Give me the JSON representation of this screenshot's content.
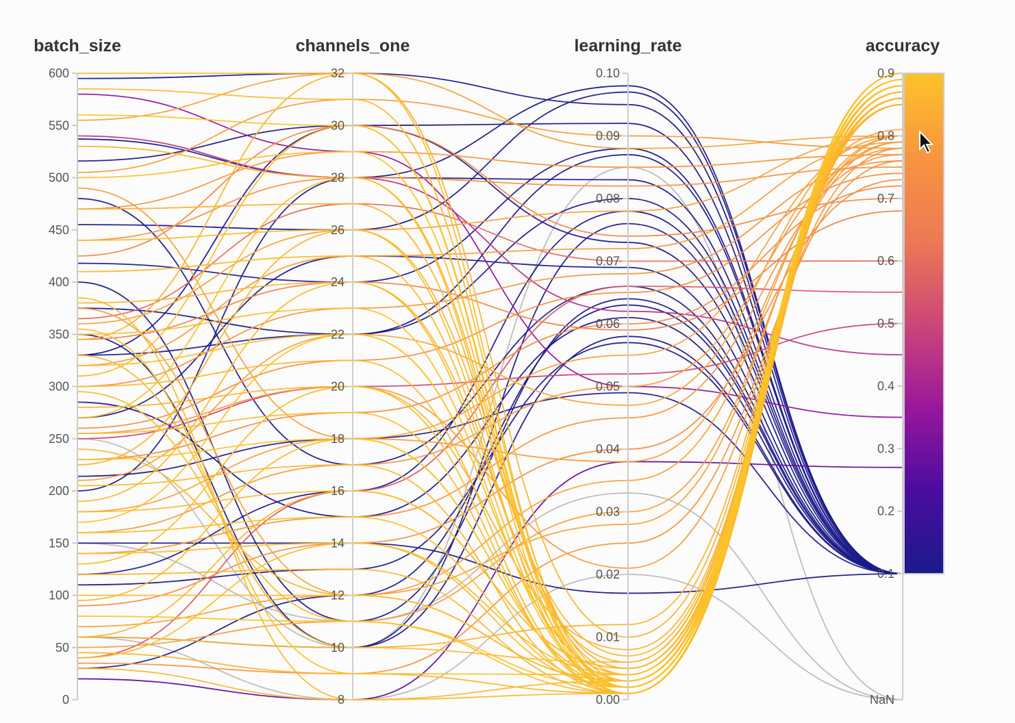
{
  "chart_data": {
    "type": "parallel-coordinates",
    "dimensions": [
      {
        "name": "batch_size",
        "range": [
          0,
          600
        ],
        "ticks": [
          "0",
          "50",
          "100",
          "150",
          "200",
          "250",
          "300",
          "350",
          "400",
          "450",
          "500",
          "550",
          "600"
        ],
        "tick_values": [
          0,
          50,
          100,
          150,
          200,
          250,
          300,
          350,
          400,
          450,
          500,
          550,
          600
        ]
      },
      {
        "name": "channels_one",
        "range": [
          8,
          32
        ],
        "ticks": [
          "8",
          "10",
          "12",
          "14",
          "16",
          "18",
          "20",
          "22",
          "24",
          "26",
          "28",
          "30",
          "32"
        ],
        "tick_values": [
          8,
          10,
          12,
          14,
          16,
          18,
          20,
          22,
          24,
          26,
          28,
          30,
          32
        ]
      },
      {
        "name": "learning_rate",
        "range": [
          0,
          0.1
        ],
        "ticks": [
          "0.00",
          "0.01",
          "0.02",
          "0.03",
          "0.04",
          "0.05",
          "0.06",
          "0.07",
          "0.08",
          "0.09",
          "0.10"
        ],
        "tick_values": [
          0,
          0.01,
          0.02,
          0.03,
          0.04,
          0.05,
          0.06,
          0.07,
          0.08,
          0.09,
          0.1
        ]
      },
      {
        "name": "accuracy",
        "range": [
          0.1,
          0.9
        ],
        "ticks": [
          "NaN",
          "0.1",
          "0.2",
          "0.3",
          "0.4",
          "0.5",
          "0.6",
          "0.7",
          "0.8",
          "0.9"
        ],
        "tick_values": [
          null,
          0.1,
          0.2,
          0.3,
          0.4,
          0.5,
          0.6,
          0.7,
          0.8,
          0.9
        ]
      }
    ],
    "color_by": "accuracy",
    "colorscale": [
      "#1b1a8a",
      "#4a0ca0",
      "#9a179b",
      "#cc4778",
      "#ed7953",
      "#f89540",
      "#fdc328"
    ],
    "nan_color": "#bbbbbb",
    "lines": [
      [
        595,
        32,
        0.095,
        0.1
      ],
      [
        537,
        28,
        0.098,
        0.1
      ],
      [
        455,
        26,
        0.097,
        0.1
      ],
      [
        418,
        24,
        0.088,
        0.1
      ],
      [
        375,
        22,
        0.08,
        0.1
      ],
      [
        330,
        22,
        0.087,
        0.1
      ],
      [
        516,
        30,
        0.073,
        0.1
      ],
      [
        480,
        17,
        0.066,
        0.1
      ],
      [
        400,
        11,
        0.064,
        0.1
      ],
      [
        350,
        10,
        0.058,
        0.1
      ],
      [
        285,
        15,
        0.061,
        0.1
      ],
      [
        214,
        18,
        0.049,
        0.1
      ],
      [
        120,
        16,
        0.078,
        0.1
      ],
      [
        60,
        10,
        0.076,
        0.1
      ],
      [
        30,
        12,
        0.063,
        0.1
      ],
      [
        150,
        14,
        0.017,
        0.1
      ],
      [
        200,
        28,
        0.083,
        0.1
      ],
      [
        330,
        30,
        0.092,
        0.1
      ],
      [
        110,
        13,
        0.057,
        0.1
      ],
      [
        270,
        25,
        0.069,
        0.1
      ],
      [
        20,
        8,
        0.038,
        0.27
      ],
      [
        580,
        29,
        0.05,
        0.35
      ],
      [
        540,
        28,
        0.062,
        0.45
      ],
      [
        250,
        20,
        0.052,
        0.5
      ],
      [
        40,
        16,
        0.066,
        0.55
      ],
      [
        365,
        27,
        0.07,
        0.6
      ],
      [
        505,
        31,
        0.09,
        0.78
      ],
      [
        470,
        29,
        0.085,
        0.77
      ],
      [
        440,
        28,
        0.082,
        0.75
      ],
      [
        360,
        26,
        0.078,
        0.8
      ],
      [
        320,
        25,
        0.072,
        0.79
      ],
      [
        300,
        23,
        0.068,
        0.76
      ],
      [
        260,
        21,
        0.065,
        0.74
      ],
      [
        230,
        19,
        0.06,
        0.72
      ],
      [
        180,
        18,
        0.055,
        0.8
      ],
      [
        160,
        17,
        0.05,
        0.78
      ],
      [
        140,
        15,
        0.045,
        0.77
      ],
      [
        90,
        14,
        0.04,
        0.73
      ],
      [
        70,
        12,
        0.035,
        0.8
      ],
      [
        50,
        11,
        0.03,
        0.79
      ],
      [
        35,
        9,
        0.025,
        0.76
      ],
      [
        255,
        20,
        0.021,
        0.78
      ],
      [
        555,
        32,
        0.088,
        0.8
      ],
      [
        425,
        30,
        0.074,
        0.7
      ],
      [
        345,
        24,
        0.059,
        0.68
      ],
      [
        210,
        22,
        0.047,
        0.81
      ],
      [
        375,
        12,
        0.028,
        0.8
      ],
      [
        490,
        18,
        0.038,
        0.79
      ],
      [
        600,
        32,
        0.002,
        0.88
      ],
      [
        585,
        31,
        0.003,
        0.87
      ],
      [
        560,
        30,
        0.001,
        0.9
      ],
      [
        530,
        28,
        0.004,
        0.86
      ],
      [
        500,
        29,
        0.002,
        0.89
      ],
      [
        470,
        27,
        0.005,
        0.85
      ],
      [
        440,
        26,
        0.001,
        0.88
      ],
      [
        410,
        25,
        0.003,
        0.87
      ],
      [
        380,
        24,
        0.006,
        0.86
      ],
      [
        350,
        23,
        0.002,
        0.89
      ],
      [
        320,
        22,
        0.004,
        0.88
      ],
      [
        300,
        21,
        0.001,
        0.87
      ],
      [
        280,
        20,
        0.008,
        0.85
      ],
      [
        255,
        19,
        0.002,
        0.88
      ],
      [
        230,
        18,
        0.003,
        0.9
      ],
      [
        205,
        17,
        0.001,
        0.86
      ],
      [
        180,
        16,
        0.005,
        0.87
      ],
      [
        160,
        15,
        0.002,
        0.89
      ],
      [
        140,
        14,
        0.004,
        0.88
      ],
      [
        120,
        13,
        0.001,
        0.86
      ],
      [
        100,
        12,
        0.003,
        0.87
      ],
      [
        80,
        11,
        0.002,
        0.9
      ],
      [
        60,
        10,
        0.006,
        0.88
      ],
      [
        45,
        9,
        0.001,
        0.86
      ],
      [
        30,
        8,
        0.003,
        0.87
      ],
      [
        345,
        32,
        0.01,
        0.85
      ],
      [
        310,
        30,
        0.002,
        0.88
      ],
      [
        270,
        28,
        0.001,
        0.89
      ],
      [
        225,
        26,
        0.007,
        0.86
      ],
      [
        190,
        24,
        0.002,
        0.87
      ],
      [
        170,
        22,
        0.004,
        0.9
      ],
      [
        130,
        20,
        0.001,
        0.88
      ],
      [
        95,
        18,
        0.003,
        0.87
      ],
      [
        60,
        16,
        0.005,
        0.86
      ],
      [
        40,
        14,
        0.002,
        0.88
      ],
      [
        385,
        8,
        0.001,
        0.87
      ],
      [
        355,
        9,
        0.004,
        0.89
      ],
      [
        330,
        10,
        0.012,
        0.85
      ],
      [
        295,
        11,
        0.001,
        0.88
      ],
      [
        240,
        12,
        0.003,
        0.86
      ],
      [
        250,
        10,
        0.085,
        null
      ],
      [
        150,
        11,
        0.033,
        null
      ],
      [
        60,
        8,
        0.02,
        null
      ]
    ]
  },
  "cursor": {
    "icon": "pointer-arrow-icon"
  }
}
